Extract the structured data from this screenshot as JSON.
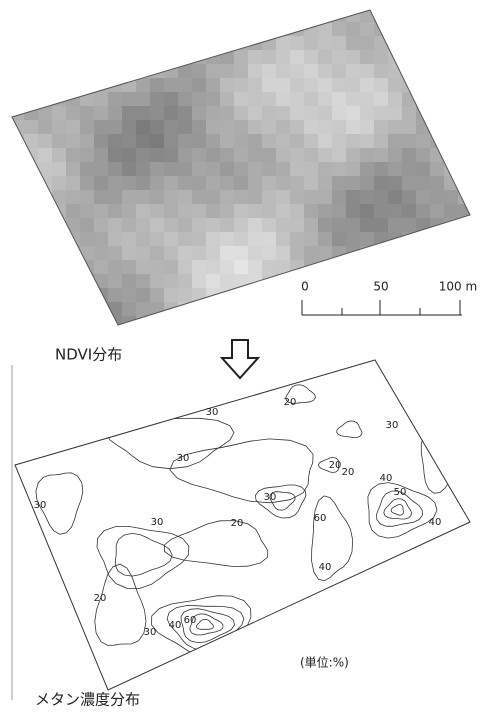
{
  "ndvi_map": {
    "caption": "NDVI分布"
  },
  "scale_bar": {
    "labels": [
      "0",
      "50",
      "100 m"
    ]
  },
  "methane_map": {
    "caption": "メタン濃度分布",
    "unit_note": "(単位:%)",
    "contour_labels": [
      "30",
      "20",
      "30",
      "30",
      "30",
      "20",
      "20",
      "30",
      "20",
      "60",
      "40",
      "50",
      "40",
      "30",
      "40",
      "20",
      "30",
      "40",
      "60"
    ]
  }
}
